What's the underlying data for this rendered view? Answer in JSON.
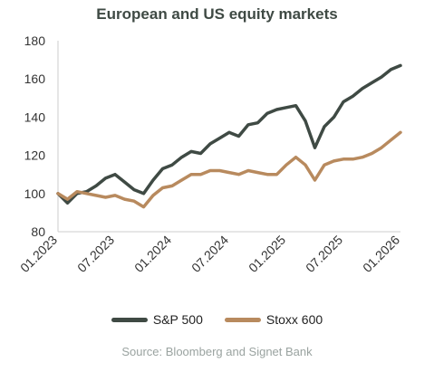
{
  "chart_data": {
    "type": "line",
    "title": "European and US equity markets",
    "source": "Source: Bloomberg and Signet Bank",
    "ylim": [
      80,
      180
    ],
    "yticks": [
      80,
      100,
      120,
      140,
      160,
      180
    ],
    "xlim": [
      "2023-01",
      "2026-01"
    ],
    "xticks": [
      "01.2023",
      "07.2023",
      "01.2024",
      "07.2024",
      "01.2025",
      "07.2025",
      "01.2026"
    ],
    "grid": false,
    "legend": "bottom",
    "series": [
      {
        "name": "S&P 500",
        "color": "#3f4a44",
        "x": [
          "2023-01-01",
          "2023-02-01",
          "2023-03-01",
          "2023-04-01",
          "2023-05-01",
          "2023-06-01",
          "2023-07-01",
          "2023-08-01",
          "2023-09-01",
          "2023-10-01",
          "2023-11-01",
          "2023-12-01",
          "2024-01-01",
          "2024-02-01",
          "2024-03-01",
          "2024-04-01",
          "2024-05-01",
          "2024-06-01",
          "2024-07-01",
          "2024-08-01",
          "2024-09-01",
          "2024-10-01",
          "2024-11-01",
          "2024-12-01",
          "2025-01-01",
          "2025-02-01",
          "2025-03-01",
          "2025-04-01",
          "2025-05-01",
          "2025-06-01",
          "2025-07-01",
          "2025-08-01",
          "2025-09-01",
          "2025-10-01",
          "2025-11-01",
          "2025-12-01",
          "2026-01-01"
        ],
        "values": [
          100,
          95,
          100,
          101,
          104,
          108,
          110,
          106,
          102,
          100,
          107,
          113,
          115,
          119,
          122,
          121,
          126,
          129,
          132,
          130,
          136,
          137,
          142,
          144,
          145,
          146,
          138,
          124,
          135,
          140,
          148,
          151,
          155,
          158,
          161,
          165,
          167
        ]
      },
      {
        "name": "Stoxx 600",
        "color": "#b88a5e",
        "x": [
          "2023-01-01",
          "2023-02-01",
          "2023-03-01",
          "2023-04-01",
          "2023-05-01",
          "2023-06-01",
          "2023-07-01",
          "2023-08-01",
          "2023-09-01",
          "2023-10-01",
          "2023-11-01",
          "2023-12-01",
          "2024-01-01",
          "2024-02-01",
          "2024-03-01",
          "2024-04-01",
          "2024-05-01",
          "2024-06-01",
          "2024-07-01",
          "2024-08-01",
          "2024-09-01",
          "2024-10-01",
          "2024-11-01",
          "2024-12-01",
          "2025-01-01",
          "2025-02-01",
          "2025-03-01",
          "2025-04-01",
          "2025-05-01",
          "2025-06-01",
          "2025-07-01",
          "2025-08-01",
          "2025-09-01",
          "2025-10-01",
          "2025-11-01",
          "2025-12-01",
          "2026-01-01"
        ],
        "values": [
          100,
          97,
          101,
          100,
          99,
          98,
          99,
          97,
          96,
          93,
          99,
          103,
          104,
          107,
          110,
          110,
          112,
          112,
          111,
          110,
          112,
          111,
          110,
          110,
          115,
          119,
          115,
          107,
          115,
          117,
          118,
          118,
          119,
          121,
          124,
          128,
          132
        ]
      }
    ]
  }
}
